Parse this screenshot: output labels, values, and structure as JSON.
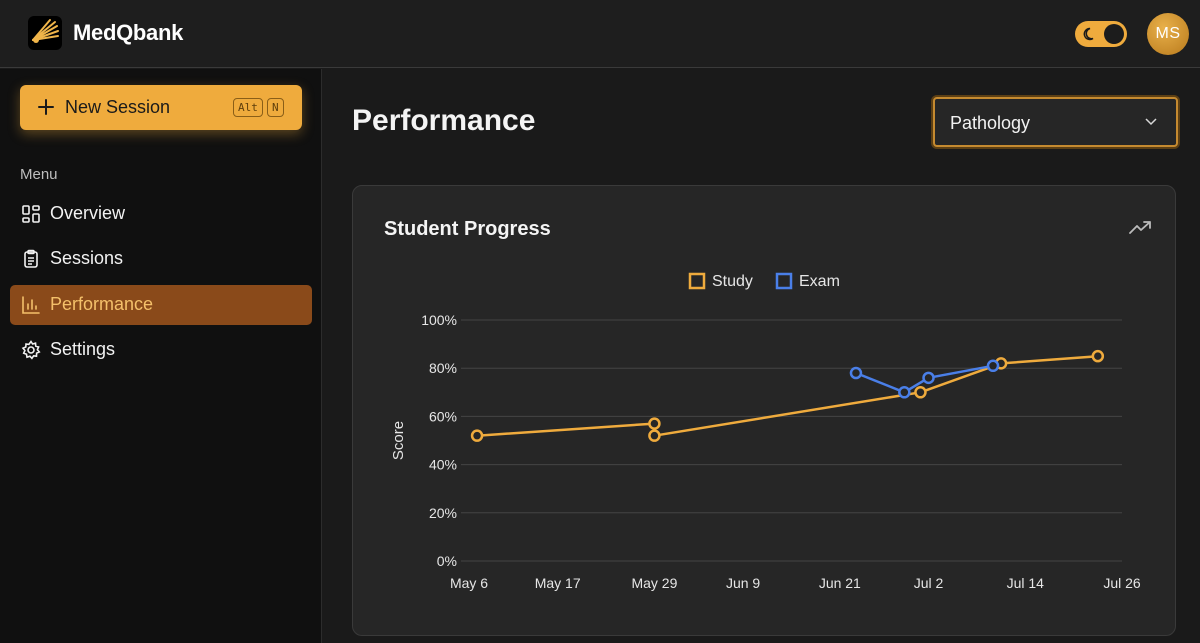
{
  "app": {
    "name": "MedQbank"
  },
  "header": {
    "avatar_initials": "MS"
  },
  "sidebar": {
    "new_session": {
      "label": "New Session",
      "shortcut": [
        "Alt",
        "N"
      ]
    },
    "menu_title": "Menu",
    "items": [
      {
        "label": "Overview",
        "icon": "dashboard-icon"
      },
      {
        "label": "Sessions",
        "icon": "clipboard-icon"
      },
      {
        "label": "Performance",
        "icon": "bar-chart-icon",
        "active": true
      },
      {
        "label": "Settings",
        "icon": "gear-icon"
      }
    ]
  },
  "main": {
    "title": "Performance",
    "subject_select": {
      "value": "Pathology"
    },
    "card": {
      "title": "Student Progress"
    }
  },
  "colors": {
    "accent": "#efab3d",
    "study": "#efab3d",
    "exam": "#4a7fe8",
    "active_nav": "#8a4a1a"
  },
  "chart_data": {
    "type": "line",
    "title": "Student Progress",
    "ylabel": "Score",
    "xlabel": "",
    "ylim": [
      0,
      100
    ],
    "y_ticks": [
      "0%",
      "20%",
      "40%",
      "60%",
      "80%",
      "100%"
    ],
    "x_ticks": [
      "May 6",
      "May 17",
      "May 29",
      "Jun 9",
      "Jun 21",
      "Jul 2",
      "Jul 14",
      "Jul 26"
    ],
    "x_range": [
      "May 6",
      "Jul 26"
    ],
    "legend": {
      "placement": "top-center"
    },
    "grid": true,
    "series": [
      {
        "name": "Study",
        "color": "#efab3d",
        "points": [
          {
            "x": "May 7",
            "y": 52
          },
          {
            "x": "May 29",
            "y": 57
          },
          {
            "x": "May 29",
            "y": 52
          },
          {
            "x": "Jul 1",
            "y": 70
          },
          {
            "x": "Jul 11",
            "y": 82
          },
          {
            "x": "Jul 23",
            "y": 85
          }
        ]
      },
      {
        "name": "Exam",
        "color": "#4a7fe8",
        "points": [
          {
            "x": "Jun 23",
            "y": 78
          },
          {
            "x": "Jun 29",
            "y": 70
          },
          {
            "x": "Jul 2",
            "y": 76
          },
          {
            "x": "Jul 10",
            "y": 81
          }
        ]
      }
    ]
  }
}
